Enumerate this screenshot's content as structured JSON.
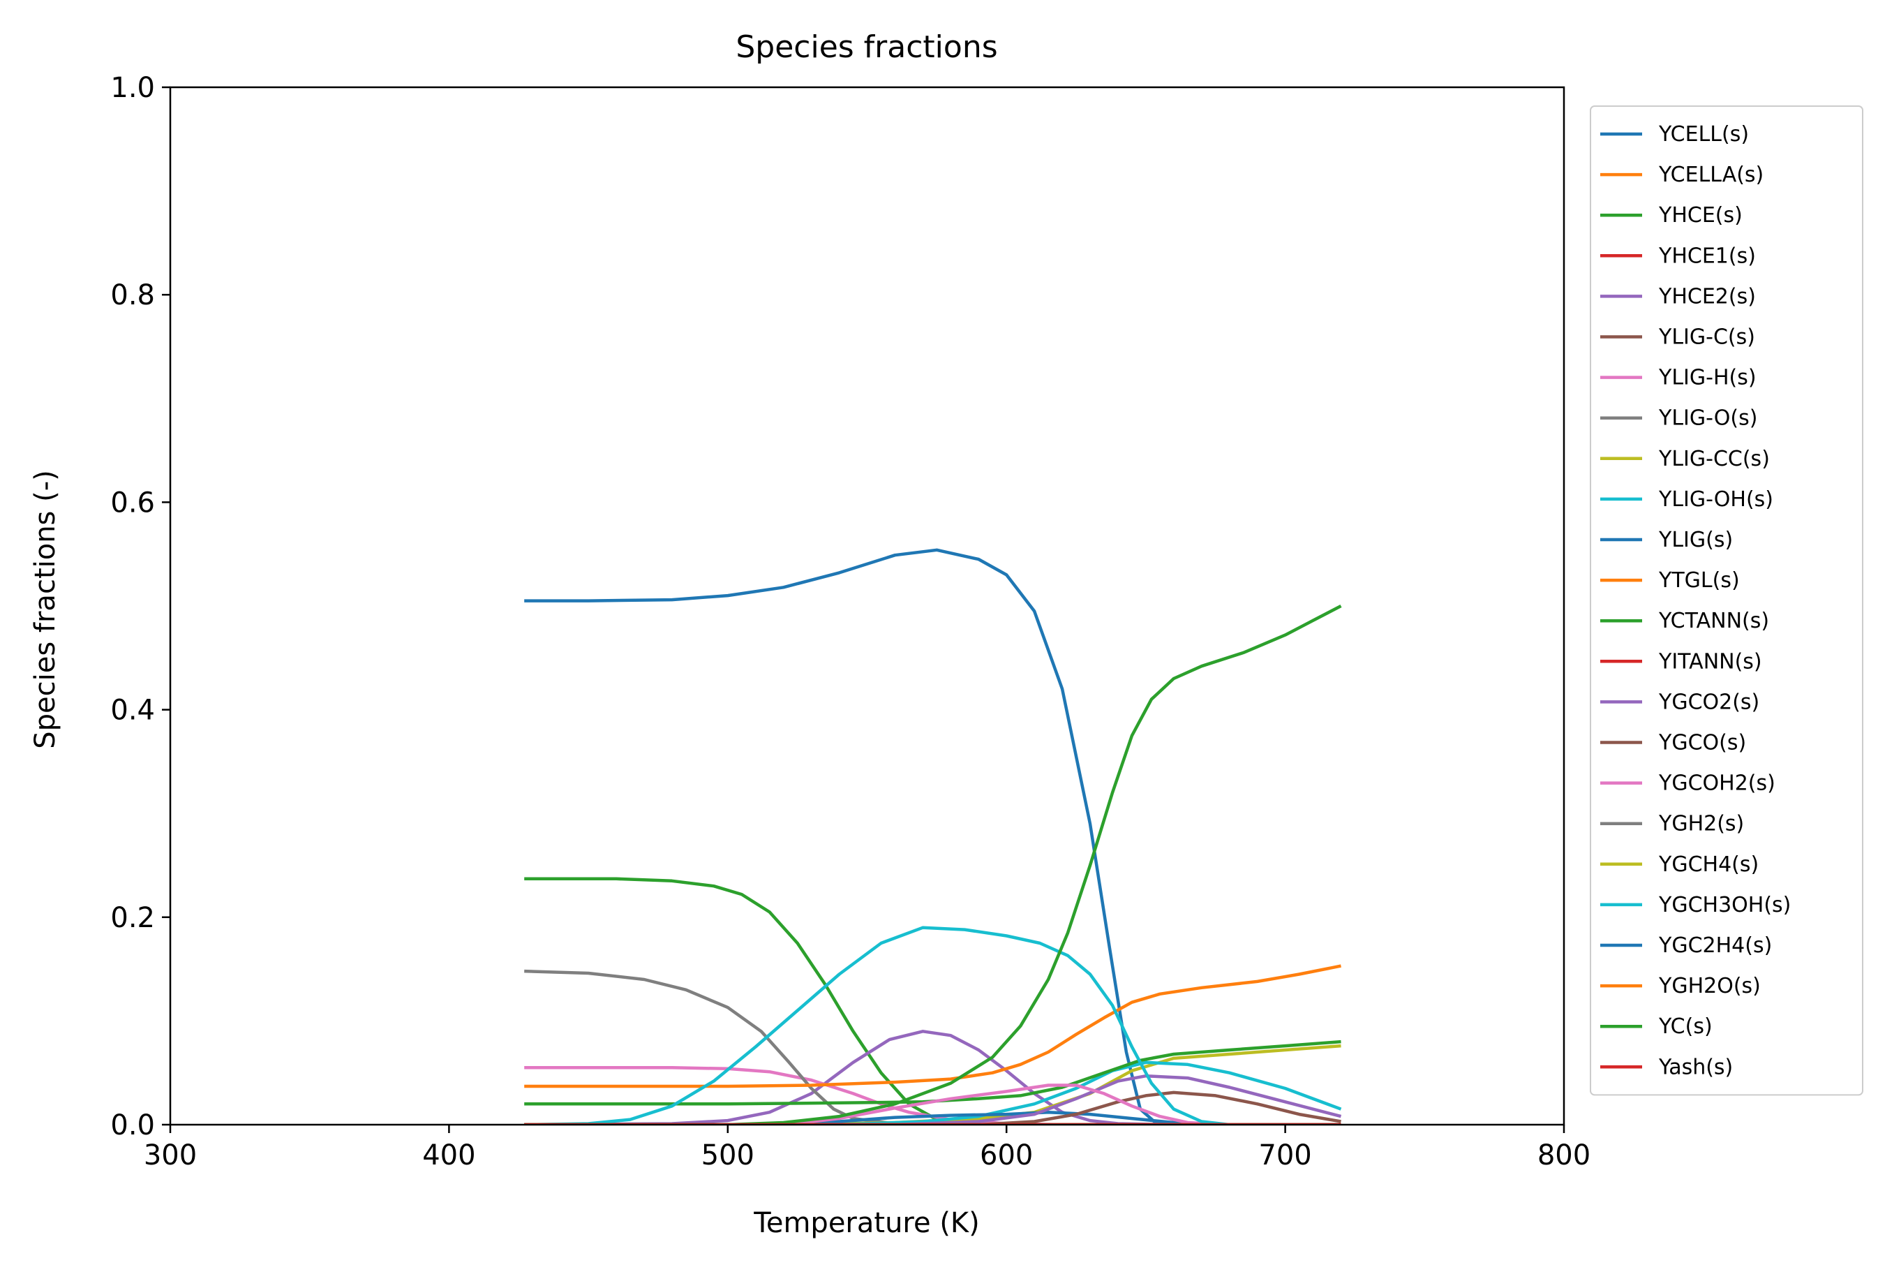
{
  "chart_data": {
    "type": "line",
    "title": "Species fractions",
    "xlabel": "Temperature (K)",
    "ylabel": "Species fractions (-)",
    "xlim": [
      300,
      800
    ],
    "ylim": [
      0,
      1
    ],
    "xticks": [
      300,
      400,
      500,
      600,
      700,
      800
    ],
    "yticks": [
      0.0,
      0.2,
      0.4,
      0.6,
      0.8,
      1.0
    ],
    "xtick_labels": [
      "300",
      "400",
      "500",
      "600",
      "700",
      "800"
    ],
    "ytick_labels": [
      "0.0",
      "0.2",
      "0.4",
      "0.6",
      "0.8",
      "1.0"
    ],
    "grid": false,
    "legend_position": "outside-right",
    "series": [
      {
        "name": "YCELL(s)",
        "color": "#1f77b4",
        "points": [
          [
            427,
            0.505
          ],
          [
            450,
            0.505
          ],
          [
            480,
            0.506
          ],
          [
            500,
            0.51
          ],
          [
            520,
            0.518
          ],
          [
            540,
            0.532
          ],
          [
            560,
            0.549
          ],
          [
            575,
            0.554
          ],
          [
            590,
            0.545
          ],
          [
            600,
            0.53
          ],
          [
            610,
            0.495
          ],
          [
            620,
            0.42
          ],
          [
            630,
            0.29
          ],
          [
            637,
            0.17
          ],
          [
            643,
            0.07
          ],
          [
            648,
            0.015
          ],
          [
            653,
            0.003
          ],
          [
            670,
            0.0
          ],
          [
            720,
            0.0
          ]
        ]
      },
      {
        "name": "YCELLA(s)",
        "color": "#ff7f0e",
        "points": [
          [
            427,
            0.0
          ],
          [
            720,
            0.0
          ]
        ]
      },
      {
        "name": "YHCE(s)",
        "color": "#2ca02c",
        "points": [
          [
            427,
            0.237
          ],
          [
            460,
            0.237
          ],
          [
            480,
            0.235
          ],
          [
            495,
            0.23
          ],
          [
            505,
            0.222
          ],
          [
            515,
            0.205
          ],
          [
            525,
            0.175
          ],
          [
            535,
            0.135
          ],
          [
            545,
            0.09
          ],
          [
            555,
            0.05
          ],
          [
            565,
            0.02
          ],
          [
            575,
            0.005
          ],
          [
            585,
            0.001
          ],
          [
            600,
            0.0
          ],
          [
            720,
            0.0
          ]
        ]
      },
      {
        "name": "YHCE1(s)",
        "color": "#d62728",
        "points": [
          [
            427,
            0.0
          ],
          [
            720,
            0.0
          ]
        ]
      },
      {
        "name": "YHCE2(s)",
        "color": "#9467bd",
        "points": [
          [
            427,
            0.0
          ],
          [
            480,
            0.001
          ],
          [
            500,
            0.004
          ],
          [
            515,
            0.012
          ],
          [
            530,
            0.03
          ],
          [
            545,
            0.06
          ],
          [
            558,
            0.082
          ],
          [
            570,
            0.09
          ],
          [
            580,
            0.086
          ],
          [
            590,
            0.072
          ],
          [
            600,
            0.052
          ],
          [
            610,
            0.03
          ],
          [
            620,
            0.012
          ],
          [
            630,
            0.004
          ],
          [
            640,
            0.001
          ],
          [
            660,
            0.0
          ],
          [
            720,
            0.0
          ]
        ]
      },
      {
        "name": "YLIG-C(s)",
        "color": "#8c564b",
        "points": [
          [
            427,
            0.0
          ],
          [
            720,
            0.0
          ]
        ]
      },
      {
        "name": "YLIG-H(s)",
        "color": "#e377c2",
        "points": [
          [
            427,
            0.055
          ],
          [
            460,
            0.055
          ],
          [
            480,
            0.055
          ],
          [
            500,
            0.054
          ],
          [
            515,
            0.051
          ],
          [
            530,
            0.043
          ],
          [
            545,
            0.03
          ],
          [
            555,
            0.02
          ],
          [
            565,
            0.012
          ],
          [
            580,
            0.005
          ],
          [
            600,
            0.001
          ],
          [
            620,
            0.0
          ],
          [
            720,
            0.0
          ]
        ]
      },
      {
        "name": "YLIG-O(s)",
        "color": "#7f7f7f",
        "points": [
          [
            427,
            0.148
          ],
          [
            450,
            0.146
          ],
          [
            470,
            0.14
          ],
          [
            485,
            0.13
          ],
          [
            500,
            0.113
          ],
          [
            512,
            0.09
          ],
          [
            522,
            0.06
          ],
          [
            530,
            0.035
          ],
          [
            538,
            0.015
          ],
          [
            545,
            0.006
          ],
          [
            560,
            0.001
          ],
          [
            580,
            0.0
          ],
          [
            720,
            0.0
          ]
        ]
      },
      {
        "name": "YLIG-CC(s)",
        "color": "#bcbd22",
        "points": [
          [
            427,
            0.0
          ],
          [
            520,
            0.0
          ],
          [
            560,
            0.002
          ],
          [
            590,
            0.006
          ],
          [
            610,
            0.012
          ],
          [
            630,
            0.03
          ],
          [
            645,
            0.052
          ],
          [
            660,
            0.064
          ],
          [
            680,
            0.068
          ],
          [
            700,
            0.072
          ],
          [
            720,
            0.076
          ]
        ]
      },
      {
        "name": "YLIG-OH(s)",
        "color": "#17becf",
        "points": [
          [
            427,
            0.0
          ],
          [
            540,
            0.0
          ],
          [
            570,
            0.003
          ],
          [
            590,
            0.008
          ],
          [
            610,
            0.02
          ],
          [
            625,
            0.035
          ],
          [
            638,
            0.052
          ],
          [
            650,
            0.06
          ],
          [
            665,
            0.058
          ],
          [
            680,
            0.05
          ],
          [
            700,
            0.035
          ],
          [
            720,
            0.015
          ]
        ]
      },
      {
        "name": "YLIG(s)",
        "color": "#1f77b4",
        "points": [
          [
            427,
            0.0
          ],
          [
            520,
            0.0
          ],
          [
            540,
            0.003
          ],
          [
            560,
            0.007
          ],
          [
            580,
            0.009
          ],
          [
            600,
            0.01
          ],
          [
            615,
            0.012
          ],
          [
            630,
            0.01
          ],
          [
            645,
            0.006
          ],
          [
            660,
            0.002
          ],
          [
            680,
            0.0
          ],
          [
            720,
            0.0
          ]
        ]
      },
      {
        "name": "YTGL(s)",
        "color": "#ff7f0e",
        "points": [
          [
            427,
            0.037
          ],
          [
            500,
            0.037
          ],
          [
            530,
            0.038
          ],
          [
            560,
            0.041
          ],
          [
            580,
            0.044
          ],
          [
            595,
            0.05
          ],
          [
            605,
            0.058
          ],
          [
            615,
            0.07
          ],
          [
            625,
            0.087
          ],
          [
            635,
            0.103
          ],
          [
            645,
            0.118
          ],
          [
            655,
            0.126
          ],
          [
            670,
            0.132
          ],
          [
            690,
            0.138
          ],
          [
            705,
            0.145
          ],
          [
            720,
            0.153
          ]
        ]
      },
      {
        "name": "YCTANN(s)",
        "color": "#2ca02c",
        "points": [
          [
            427,
            0.02
          ],
          [
            500,
            0.02
          ],
          [
            540,
            0.021
          ],
          [
            570,
            0.022
          ],
          [
            590,
            0.025
          ],
          [
            605,
            0.028
          ],
          [
            620,
            0.036
          ],
          [
            635,
            0.05
          ],
          [
            648,
            0.062
          ],
          [
            660,
            0.068
          ],
          [
            680,
            0.072
          ],
          [
            700,
            0.076
          ],
          [
            720,
            0.08
          ]
        ]
      },
      {
        "name": "YITANN(s)",
        "color": "#d62728",
        "points": [
          [
            427,
            0.0
          ],
          [
            720,
            0.0
          ]
        ]
      },
      {
        "name": "YGCO2(s)",
        "color": "#9467bd",
        "points": [
          [
            427,
            0.0
          ],
          [
            560,
            0.0
          ],
          [
            590,
            0.003
          ],
          [
            610,
            0.01
          ],
          [
            625,
            0.025
          ],
          [
            640,
            0.042
          ],
          [
            650,
            0.047
          ],
          [
            665,
            0.045
          ],
          [
            680,
            0.036
          ],
          [
            700,
            0.022
          ],
          [
            720,
            0.008
          ]
        ]
      },
      {
        "name": "YGCO(s)",
        "color": "#8c564b",
        "points": [
          [
            427,
            0.0
          ],
          [
            590,
            0.0
          ],
          [
            610,
            0.003
          ],
          [
            625,
            0.01
          ],
          [
            640,
            0.022
          ],
          [
            650,
            0.028
          ],
          [
            660,
            0.031
          ],
          [
            675,
            0.028
          ],
          [
            690,
            0.02
          ],
          [
            705,
            0.01
          ],
          [
            720,
            0.003
          ]
        ]
      },
      {
        "name": "YGCOH2(s)",
        "color": "#e377c2",
        "points": [
          [
            427,
            0.0
          ],
          [
            520,
            0.0
          ],
          [
            540,
            0.006
          ],
          [
            560,
            0.016
          ],
          [
            580,
            0.025
          ],
          [
            600,
            0.032
          ],
          [
            615,
            0.038
          ],
          [
            625,
            0.038
          ],
          [
            635,
            0.03
          ],
          [
            645,
            0.018
          ],
          [
            655,
            0.008
          ],
          [
            665,
            0.002
          ],
          [
            680,
            0.0
          ],
          [
            720,
            0.0
          ]
        ]
      },
      {
        "name": "YGH2(s)",
        "color": "#7f7f7f",
        "points": [
          [
            427,
            0.0
          ],
          [
            720,
            0.0
          ]
        ]
      },
      {
        "name": "YGCH4(s)",
        "color": "#bcbd22",
        "points": [
          [
            427,
            0.0
          ],
          [
            720,
            0.0
          ]
        ]
      },
      {
        "name": "YGCH3OH(s)",
        "color": "#17becf",
        "points": [
          [
            427,
            0.0
          ],
          [
            450,
            0.001
          ],
          [
            465,
            0.005
          ],
          [
            480,
            0.018
          ],
          [
            495,
            0.042
          ],
          [
            510,
            0.075
          ],
          [
            525,
            0.11
          ],
          [
            540,
            0.145
          ],
          [
            555,
            0.175
          ],
          [
            570,
            0.19
          ],
          [
            585,
            0.188
          ],
          [
            600,
            0.182
          ],
          [
            612,
            0.175
          ],
          [
            622,
            0.163
          ],
          [
            630,
            0.145
          ],
          [
            638,
            0.115
          ],
          [
            645,
            0.075
          ],
          [
            652,
            0.04
          ],
          [
            660,
            0.015
          ],
          [
            670,
            0.003
          ],
          [
            680,
            0.0
          ],
          [
            720,
            0.0
          ]
        ]
      },
      {
        "name": "YGC2H4(s)",
        "color": "#1f77b4",
        "points": [
          [
            427,
            0.0
          ],
          [
            720,
            0.0
          ]
        ]
      },
      {
        "name": "YGH2O(s)",
        "color": "#ff7f0e",
        "points": [
          [
            427,
            0.0
          ],
          [
            720,
            0.0
          ]
        ]
      },
      {
        "name": "YC(s)",
        "color": "#2ca02c",
        "points": [
          [
            427,
            0.0
          ],
          [
            500,
            0.0
          ],
          [
            520,
            0.002
          ],
          [
            540,
            0.008
          ],
          [
            560,
            0.02
          ],
          [
            580,
            0.04
          ],
          [
            595,
            0.065
          ],
          [
            605,
            0.095
          ],
          [
            615,
            0.14
          ],
          [
            622,
            0.185
          ],
          [
            630,
            0.25
          ],
          [
            638,
            0.32
          ],
          [
            645,
            0.375
          ],
          [
            652,
            0.41
          ],
          [
            660,
            0.43
          ],
          [
            670,
            0.442
          ],
          [
            685,
            0.455
          ],
          [
            700,
            0.472
          ],
          [
            710,
            0.486
          ],
          [
            720,
            0.5
          ]
        ]
      },
      {
        "name": "Yash(s)",
        "color": "#d62728",
        "points": [
          [
            427,
            0.0
          ],
          [
            720,
            0.0
          ]
        ]
      }
    ]
  }
}
